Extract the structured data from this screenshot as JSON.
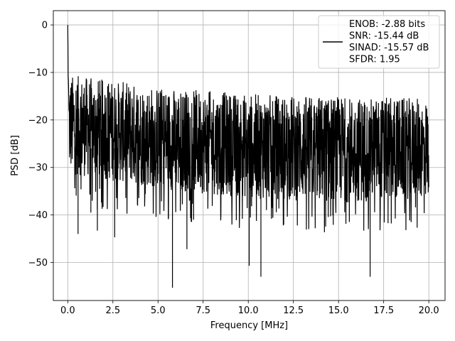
{
  "chart_data": {
    "type": "line",
    "title": "",
    "xlabel": "Frequency [MHz]",
    "ylabel": "PSD [dB]",
    "xlim": [
      -0.8,
      20.9
    ],
    "ylim": [
      -58,
      3
    ],
    "xticks": [
      0.0,
      2.5,
      5.0,
      7.5,
      10.0,
      12.5,
      15.0,
      17.5,
      20.0
    ],
    "xtick_labels": [
      "0.0",
      "2.5",
      "5.0",
      "7.5",
      "10.0",
      "12.5",
      "15.0",
      "17.5",
      "20.0"
    ],
    "yticks": [
      0,
      -10,
      -20,
      -30,
      -40,
      -50
    ],
    "ytick_labels": [
      "0",
      "−10",
      "−20",
      "−30",
      "−40",
      "−50"
    ],
    "grid": true,
    "legend_position": "top-right",
    "legend_lines": [
      "ENOB: -2.88 bits",
      "SNR: -15.44 dB",
      "SINAD: -15.57 dB",
      "SFDR: 1.95"
    ],
    "series": [
      {
        "color": "#000000",
        "x_range": [
          0.0,
          20.0
        ],
        "num_points": 1800,
        "peak": {
          "x": 0.0,
          "y": 0.0
        },
        "near_dc_values": [
          0,
          -4.5,
          -10.8,
          -11.5,
          -13,
          -15
        ],
        "upper_envelope": [
          [
            0.2,
            -12
          ],
          [
            5,
            -14.5
          ],
          [
            10,
            -16
          ],
          [
            15,
            -16.5
          ],
          [
            20,
            -17
          ]
        ],
        "lower_envelope": [
          [
            0.2,
            -33
          ],
          [
            5,
            -36
          ],
          [
            10,
            -38
          ],
          [
            15,
            -39
          ],
          [
            20,
            -38
          ]
        ],
        "notable_minima": [
          [
            0.57,
            -44
          ],
          [
            1.28,
            -39.5
          ],
          [
            1.64,
            -43.3
          ],
          [
            2.6,
            -44.7
          ],
          [
            5.8,
            -55.3
          ],
          [
            6.6,
            -47.2
          ],
          [
            10.05,
            -50.7
          ],
          [
            10.7,
            -53
          ],
          [
            16.75,
            -53
          ]
        ]
      }
    ]
  }
}
